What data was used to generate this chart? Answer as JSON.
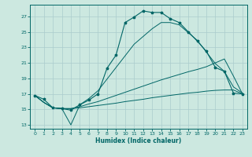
{
  "title": "",
  "xlabel": "Humidex (Indice chaleur)",
  "bg_color": "#cce8e0",
  "grid_color": "#aacccc",
  "line_color": "#006666",
  "xlim": [
    -0.5,
    23.5
  ],
  "ylim": [
    12.5,
    28.5
  ],
  "xticks": [
    0,
    1,
    2,
    3,
    4,
    5,
    6,
    7,
    8,
    9,
    10,
    11,
    12,
    13,
    14,
    15,
    16,
    17,
    18,
    19,
    20,
    21,
    22,
    23
  ],
  "yticks": [
    13,
    15,
    17,
    19,
    21,
    23,
    25,
    27
  ],
  "curve1_x": [
    0,
    1,
    2,
    3,
    4,
    5,
    6,
    7,
    8,
    9,
    10,
    11,
    12,
    13,
    14,
    15,
    16,
    17,
    18,
    19,
    20,
    21,
    22,
    23
  ],
  "curve1_y": [
    16.8,
    16.3,
    15.2,
    15.1,
    14.9,
    15.6,
    16.2,
    17.0,
    20.3,
    22.0,
    26.2,
    26.9,
    27.7,
    27.5,
    27.5,
    26.7,
    26.2,
    25.0,
    23.8,
    22.5,
    20.4,
    19.9,
    17.1,
    17.0
  ],
  "curve2_x": [
    0,
    1,
    2,
    3,
    4,
    5,
    6,
    7,
    8,
    9,
    10,
    11,
    12,
    13,
    14,
    15,
    16,
    17,
    18,
    19,
    20,
    21,
    22,
    23
  ],
  "curve2_y": [
    16.8,
    15.9,
    15.2,
    15.1,
    15.1,
    15.2,
    15.35,
    15.5,
    15.65,
    15.8,
    16.0,
    16.15,
    16.3,
    16.5,
    16.65,
    16.8,
    16.95,
    17.1,
    17.2,
    17.35,
    17.45,
    17.5,
    17.5,
    17.0
  ],
  "curve3_x": [
    0,
    1,
    2,
    3,
    4,
    5,
    6,
    7,
    8,
    9,
    10,
    11,
    12,
    13,
    14,
    15,
    16,
    17,
    18,
    19,
    20,
    21,
    22,
    23
  ],
  "curve3_y": [
    16.8,
    15.9,
    15.2,
    15.1,
    15.1,
    15.35,
    15.7,
    16.0,
    16.4,
    16.8,
    17.2,
    17.6,
    18.0,
    18.4,
    18.8,
    19.15,
    19.5,
    19.85,
    20.15,
    20.5,
    21.0,
    21.5,
    19.3,
    17.0
  ],
  "curve4_x": [
    0,
    1,
    2,
    3,
    4,
    5,
    6,
    7,
    8,
    9,
    10,
    11,
    12,
    13,
    14,
    15,
    16,
    17,
    18,
    19,
    20,
    21,
    22,
    23
  ],
  "curve4_y": [
    16.8,
    15.9,
    15.2,
    15.1,
    13.0,
    15.6,
    16.4,
    17.4,
    18.9,
    20.4,
    21.9,
    23.4,
    24.4,
    25.4,
    26.2,
    26.2,
    25.9,
    24.9,
    23.9,
    22.4,
    20.9,
    19.9,
    17.9,
    17.1
  ]
}
